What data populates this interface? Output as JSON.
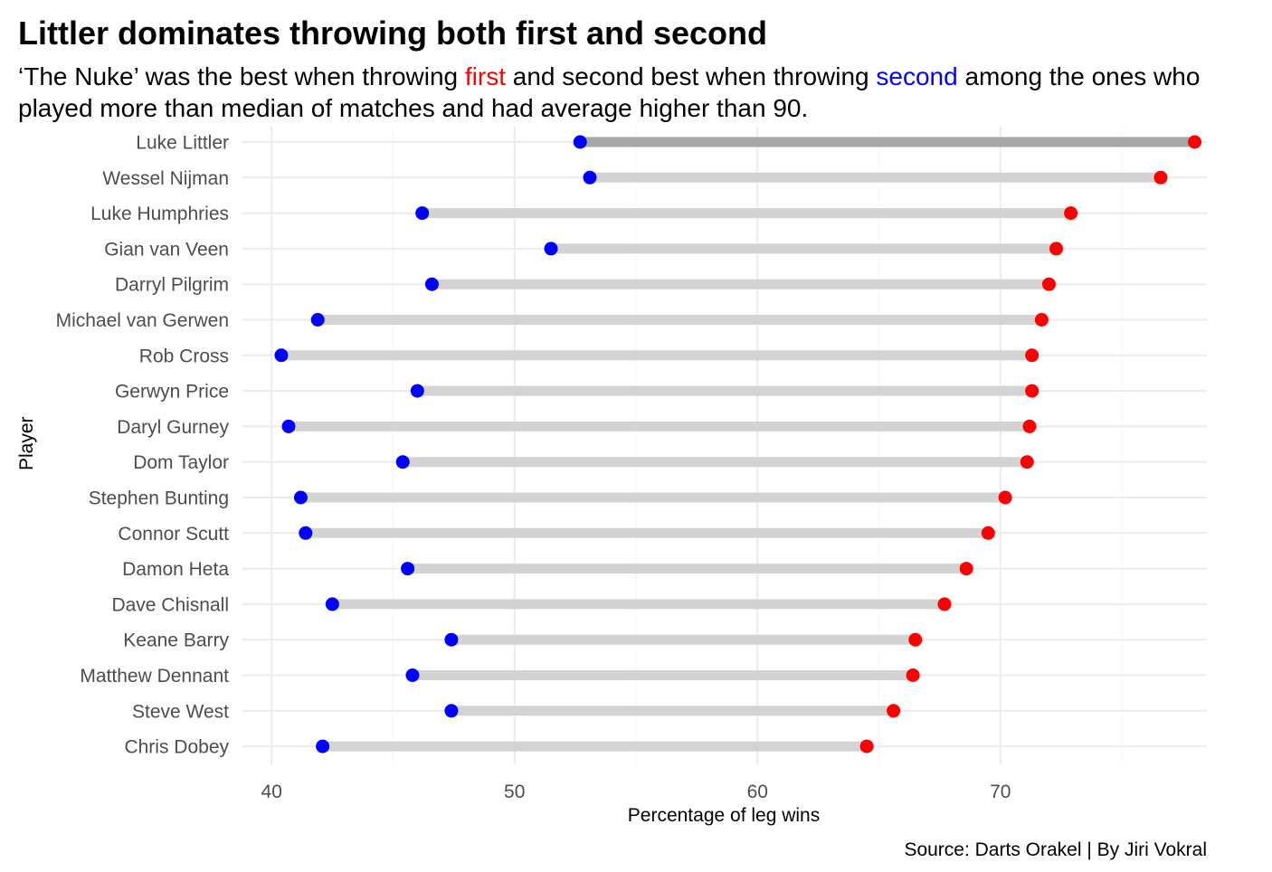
{
  "title": "Littler dominates throwing both first and second",
  "subtitle": {
    "part1": "‘The Nuke’ was the best when throwing ",
    "first_word": "first",
    "part2": " and second best when throwing ",
    "second_word": "second",
    "part3": " among the ones who played more than median of matches and had average higher than 90."
  },
  "caption": "Source: Darts Orakel | By Jiri Vokral",
  "colors": {
    "first": "#ff0000",
    "second": "#0000ff",
    "highlight_bar": "#a6a6a6",
    "bar": "#d3d3d3"
  },
  "chart_data": {
    "type": "dumbbell",
    "xlabel": "Percentage of leg wins",
    "ylabel": "Player",
    "xlim": [
      38.8,
      78.5
    ],
    "xticks": [
      40,
      50,
      60,
      70
    ],
    "grid": true,
    "series": [
      {
        "name": "first",
        "color": "#ff0000"
      },
      {
        "name": "second",
        "color": "#0000ff"
      }
    ],
    "players": [
      {
        "name": "Luke Littler",
        "first": 78.0,
        "second": 52.7,
        "highlight": true
      },
      {
        "name": "Wessel Nijman",
        "first": 76.6,
        "second": 53.1
      },
      {
        "name": "Luke Humphries",
        "first": 72.9,
        "second": 46.2
      },
      {
        "name": "Gian van Veen",
        "first": 72.3,
        "second": 51.5
      },
      {
        "name": "Darryl Pilgrim",
        "first": 72.0,
        "second": 46.6
      },
      {
        "name": "Michael van Gerwen",
        "first": 71.7,
        "second": 41.9
      },
      {
        "name": "Rob Cross",
        "first": 71.3,
        "second": 40.4
      },
      {
        "name": "Gerwyn Price",
        "first": 71.3,
        "second": 46.0
      },
      {
        "name": "Daryl Gurney",
        "first": 71.2,
        "second": 40.7
      },
      {
        "name": "Dom Taylor",
        "first": 71.1,
        "second": 45.4
      },
      {
        "name": "Stephen Bunting",
        "first": 70.2,
        "second": 41.2
      },
      {
        "name": "Connor Scutt",
        "first": 69.5,
        "second": 41.4
      },
      {
        "name": "Damon Heta",
        "first": 68.6,
        "second": 45.6
      },
      {
        "name": "Dave Chisnall",
        "first": 67.7,
        "second": 42.5
      },
      {
        "name": "Keane Barry",
        "first": 66.5,
        "second": 47.4
      },
      {
        "name": "Matthew Dennant",
        "first": 66.4,
        "second": 45.8
      },
      {
        "name": "Steve West",
        "first": 65.6,
        "second": 47.4
      },
      {
        "name": "Chris Dobey",
        "first": 64.5,
        "second": 42.1
      }
    ]
  }
}
